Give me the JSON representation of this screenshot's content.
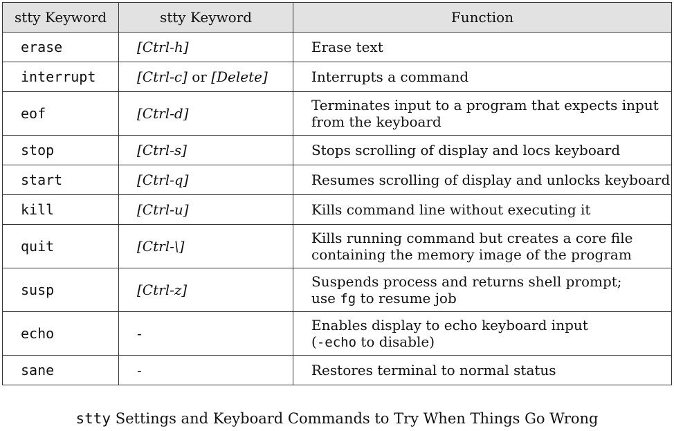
{
  "table": {
    "headers": [
      "stty Keyword",
      "stty Keyword",
      "Function"
    ],
    "rows": [
      {
        "keyword": "erase",
        "key_a": "[Ctrl-h]",
        "key_or": "",
        "key_b": "",
        "fn_a": "Erase text",
        "fn_code": "",
        "fn_b": "",
        "fn_line2": ""
      },
      {
        "keyword": "interrupt",
        "key_a": "[Ctrl-c]",
        "key_or": " or ",
        "key_b": "[Delete]",
        "fn_a": "Interrupts a command",
        "fn_code": "",
        "fn_b": "",
        "fn_line2": ""
      },
      {
        "keyword": "eof",
        "key_a": "[Ctrl-d]",
        "key_or": "",
        "key_b": "",
        "fn_a": "Terminates input to a program that expects input",
        "fn_code": "",
        "fn_b": "",
        "fn_line2": "from the keyboard"
      },
      {
        "keyword": "stop",
        "key_a": "[Ctrl-s]",
        "key_or": "",
        "key_b": "",
        "fn_a": "Stops scrolling of display and locs keyboard",
        "fn_code": "",
        "fn_b": "",
        "fn_line2": ""
      },
      {
        "keyword": "start",
        "key_a": "[Ctrl-q]",
        "key_or": "",
        "key_b": "",
        "fn_a": "Resumes scrolling of display and unlocks keyboard",
        "fn_code": "",
        "fn_b": "",
        "fn_line2": ""
      },
      {
        "keyword": "kill",
        "key_a": "[Ctrl-u]",
        "key_or": "",
        "key_b": "",
        "fn_a": "Kills command line without executing it",
        "fn_code": "",
        "fn_b": "",
        "fn_line2": ""
      },
      {
        "keyword": "quit",
        "key_a": "[Ctrl-\\]",
        "key_or": "",
        "key_b": "",
        "fn_a": "Kills running command but creates a core file",
        "fn_code": "",
        "fn_b": "",
        "fn_line2": "containing the memory image of the program"
      },
      {
        "keyword": "susp",
        "key_a": "[Ctrl-z]",
        "key_or": "",
        "key_b": "",
        "fn_a": "Suspends process and returns shell prompt;",
        "fn_code": "",
        "fn_b": "",
        "fn_line2": "use fg to resume job"
      },
      {
        "keyword": "echo",
        "key_a": "-",
        "key_or": "",
        "key_b": "",
        "fn_a": "Enables display to echo keyboard input",
        "fn_code": "",
        "fn_b": "",
        "fn_line2": "(-echo to disable)"
      },
      {
        "keyword": "sane",
        "key_a": "-",
        "key_or": "",
        "key_b": "",
        "fn_a": "Restores terminal to normal status",
        "fn_code": "",
        "fn_b": "",
        "fn_line2": ""
      }
    ]
  },
  "caption": {
    "command": "stty",
    "text": " Settings and Keyboard Commands to Try When Things Go Wrong"
  }
}
